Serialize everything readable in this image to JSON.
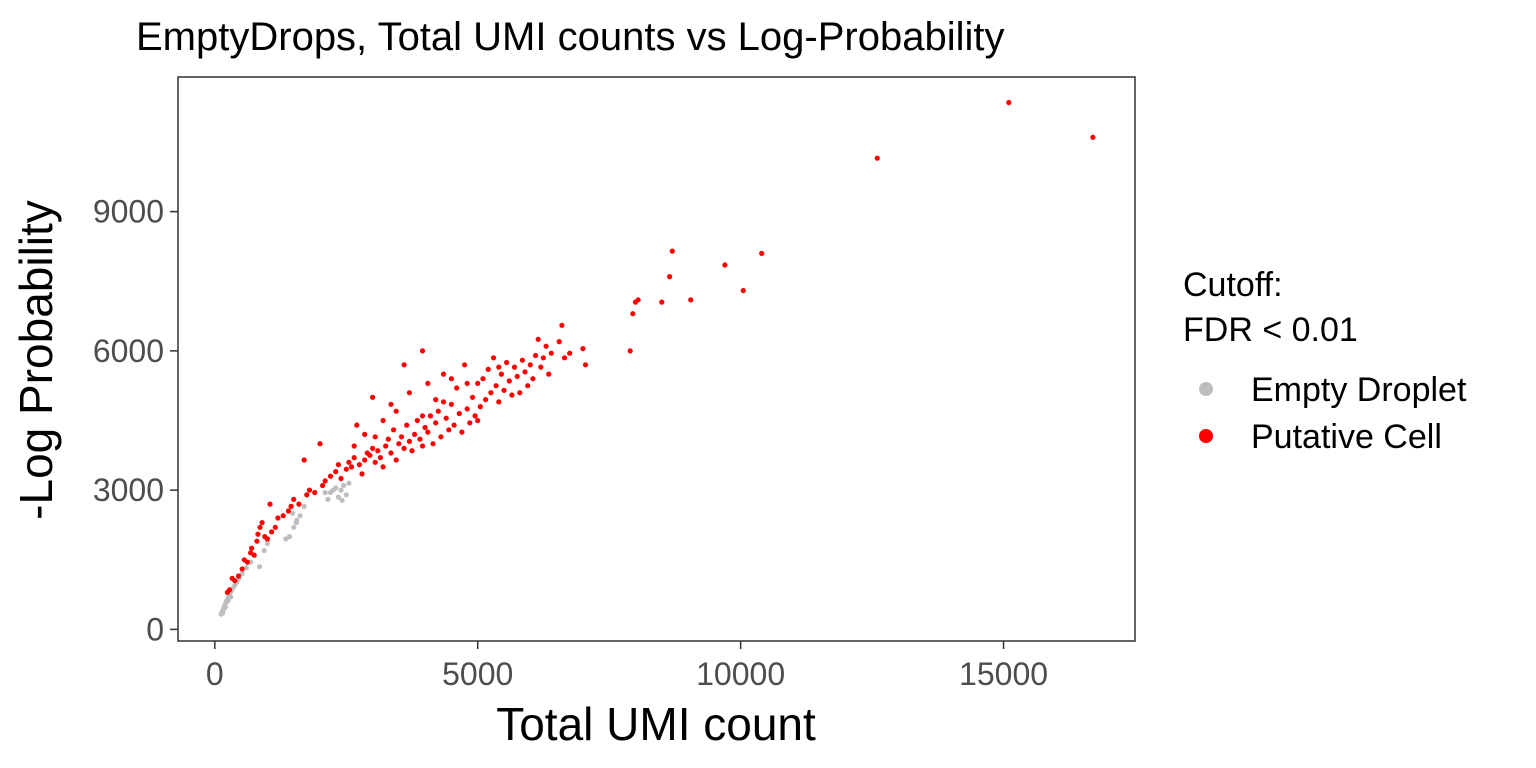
{
  "chart_data": {
    "type": "scatter",
    "title": "EmptyDrops, Total UMI counts vs Log-Probability",
    "xlabel": "Total UMI count",
    "ylabel": "-Log Probability",
    "xlim": [
      -700,
      17500
    ],
    "ylim": [
      -250,
      11900
    ],
    "xticks": [
      0,
      5000,
      10000,
      15000
    ],
    "yticks": [
      0,
      3000,
      6000,
      9000
    ],
    "grid": false,
    "legend": {
      "title_lines": [
        "Cutoff:",
        "FDR < 0.01"
      ],
      "position": "right",
      "entries": [
        "Empty Droplet",
        "Putative Cell"
      ]
    },
    "series": [
      {
        "name": "Empty Droplet",
        "color": "#bebebe",
        "points": [
          [
            120,
            330
          ],
          [
            140,
            380
          ],
          [
            160,
            420
          ],
          [
            175,
            470
          ],
          [
            190,
            520
          ],
          [
            205,
            560
          ],
          [
            220,
            600
          ],
          [
            240,
            640
          ],
          [
            260,
            700
          ],
          [
            280,
            760
          ],
          [
            310,
            820
          ],
          [
            340,
            880
          ],
          [
            380,
            950
          ],
          [
            420,
            1020
          ],
          [
            460,
            1100
          ],
          [
            520,
            1200
          ],
          [
            600,
            1330
          ],
          [
            680,
            1450
          ],
          [
            850,
            1350
          ],
          [
            940,
            1700
          ],
          [
            1000,
            1850
          ],
          [
            1350,
            1950
          ],
          [
            1420,
            2000
          ],
          [
            1500,
            2200
          ],
          [
            1560,
            2350
          ],
          [
            1620,
            2450
          ],
          [
            1700,
            2650
          ],
          [
            1550,
            2300
          ],
          [
            1480,
            2500
          ],
          [
            2150,
            2800
          ],
          [
            2200,
            2950
          ],
          [
            2300,
            3050
          ],
          [
            2350,
            2850
          ],
          [
            2400,
            3000
          ],
          [
            2450,
            3100
          ],
          [
            2500,
            2900
          ],
          [
            2550,
            3150
          ],
          [
            2250,
            3000
          ],
          [
            2100,
            2950
          ],
          [
            2420,
            2780
          ],
          [
            200,
            480
          ],
          [
            150,
            350
          ],
          [
            300,
            700
          ],
          [
            250,
            620
          ]
        ]
      },
      {
        "name": "Putative Cell",
        "color": "#ff0000",
        "points": [
          [
            240,
            800
          ],
          [
            280,
            850
          ],
          [
            330,
            1100
          ],
          [
            380,
            1050
          ],
          [
            450,
            1150
          ],
          [
            520,
            1300
          ],
          [
            560,
            1500
          ],
          [
            620,
            1450
          ],
          [
            680,
            1650
          ],
          [
            700,
            1750
          ],
          [
            750,
            1600
          ],
          [
            800,
            1900
          ],
          [
            820,
            2050
          ],
          [
            860,
            2200
          ],
          [
            900,
            2300
          ],
          [
            950,
            2000
          ],
          [
            1000,
            1950
          ],
          [
            1080,
            2100
          ],
          [
            1050,
            2700
          ],
          [
            1150,
            2200
          ],
          [
            1200,
            2400
          ],
          [
            1300,
            2450
          ],
          [
            1400,
            2550
          ],
          [
            1450,
            2650
          ],
          [
            1500,
            2800
          ],
          [
            1600,
            2700
          ],
          [
            1700,
            3650
          ],
          [
            1750,
            2900
          ],
          [
            1800,
            3000
          ],
          [
            1900,
            2950
          ],
          [
            2000,
            4000
          ],
          [
            2050,
            3100
          ],
          [
            2100,
            3200
          ],
          [
            2200,
            3300
          ],
          [
            2300,
            3400
          ],
          [
            2350,
            3550
          ],
          [
            2400,
            3250
          ],
          [
            2500,
            3450
          ],
          [
            2550,
            3600
          ],
          [
            2600,
            3500
          ],
          [
            2650,
            3700
          ],
          [
            2700,
            4400
          ],
          [
            2750,
            3550
          ],
          [
            2800,
            3350
          ],
          [
            2850,
            3650
          ],
          [
            2900,
            3800
          ],
          [
            2950,
            3750
          ],
          [
            3000,
            5000
          ],
          [
            3000,
            3900
          ],
          [
            3050,
            3600
          ],
          [
            3100,
            3850
          ],
          [
            3150,
            3700
          ],
          [
            3200,
            3500
          ],
          [
            3250,
            3950
          ],
          [
            3300,
            4100
          ],
          [
            3350,
            3800
          ],
          [
            3400,
            4300
          ],
          [
            3450,
            3650
          ],
          [
            3500,
            4000
          ],
          [
            3550,
            4150
          ],
          [
            3600,
            3900
          ],
          [
            3600,
            5700
          ],
          [
            3650,
            4400
          ],
          [
            3700,
            4050
          ],
          [
            3750,
            3850
          ],
          [
            3800,
            4200
          ],
          [
            3850,
            4500
          ],
          [
            3900,
            4100
          ],
          [
            3950,
            6000
          ],
          [
            3950,
            3950
          ],
          [
            4000,
            4350
          ],
          [
            4050,
            4250
          ],
          [
            4100,
            4600
          ],
          [
            4150,
            4000
          ],
          [
            4200,
            4450
          ],
          [
            4250,
            4700
          ],
          [
            4300,
            4150
          ],
          [
            4350,
            5500
          ],
          [
            4400,
            4550
          ],
          [
            4450,
            4300
          ],
          [
            4500,
            4850
          ],
          [
            4550,
            4400
          ],
          [
            4600,
            5200
          ],
          [
            4650,
            4650
          ],
          [
            4700,
            4250
          ],
          [
            4750,
            5700
          ],
          [
            4800,
            4750
          ],
          [
            4850,
            4450
          ],
          [
            4900,
            5000
          ],
          [
            4950,
            4600
          ],
          [
            5000,
            5300
          ],
          [
            5050,
            4800
          ],
          [
            5100,
            5400
          ],
          [
            5150,
            4950
          ],
          [
            5200,
            5600
          ],
          [
            5250,
            5100
          ],
          [
            5300,
            5850
          ],
          [
            5350,
            5250
          ],
          [
            5400,
            4900
          ],
          [
            5450,
            5500
          ],
          [
            5500,
            5150
          ],
          [
            5550,
            5750
          ],
          [
            5600,
            5350
          ],
          [
            5650,
            5050
          ],
          [
            5700,
            5650
          ],
          [
            5750,
            5450
          ],
          [
            5800,
            5100
          ],
          [
            5850,
            5800
          ],
          [
            5900,
            5550
          ],
          [
            5950,
            5250
          ],
          [
            6000,
            5700
          ],
          [
            6050,
            5400
          ],
          [
            6100,
            5900
          ],
          [
            6150,
            6250
          ],
          [
            6200,
            5650
          ],
          [
            6250,
            5850
          ],
          [
            6300,
            6100
          ],
          [
            6350,
            5500
          ],
          [
            6400,
            5950
          ],
          [
            6550,
            6200
          ],
          [
            6600,
            6550
          ],
          [
            6650,
            5850
          ],
          [
            6750,
            5950
          ],
          [
            7000,
            6050
          ],
          [
            7050,
            5700
          ],
          [
            7900,
            6000
          ],
          [
            7950,
            6800
          ],
          [
            8000,
            7050
          ],
          [
            8050,
            7100
          ],
          [
            8500,
            7050
          ],
          [
            8650,
            7600
          ],
          [
            8700,
            8150
          ],
          [
            9050,
            7100
          ],
          [
            9700,
            7850
          ],
          [
            10050,
            7300
          ],
          [
            10400,
            8100
          ],
          [
            12600,
            10150
          ],
          [
            15100,
            11350
          ],
          [
            16700,
            10600
          ],
          [
            3450,
            4700
          ],
          [
            3200,
            4500
          ],
          [
            4350,
            4900
          ],
          [
            4050,
            5300
          ],
          [
            2850,
            4200
          ],
          [
            3700,
            5100
          ],
          [
            4500,
            5400
          ],
          [
            3350,
            4850
          ],
          [
            2650,
            3950
          ],
          [
            3050,
            4150
          ],
          [
            3950,
            4600
          ],
          [
            4200,
            4950
          ],
          [
            5000,
            4500
          ],
          [
            5400,
            5650
          ],
          [
            4800,
            5300
          ]
        ]
      }
    ]
  }
}
